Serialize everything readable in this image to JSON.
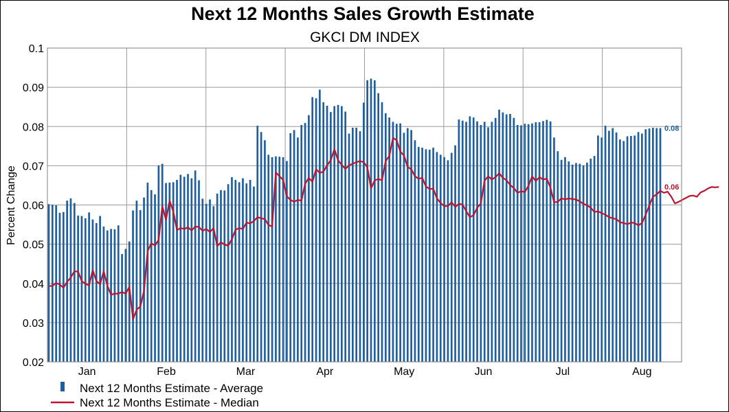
{
  "chart_data": {
    "type": "bar",
    "title": "Next 12 Months Sales Growth Estimate",
    "subtitle": "GKCI DM INDEX",
    "ylabel": "Percent Change",
    "xlabel": "",
    "ylim": [
      0.02,
      0.1
    ],
    "yticks": [
      "0.02",
      "0.03",
      "0.04",
      "0.05",
      "0.06",
      "0.07",
      "0.08",
      "0.09",
      "0.1"
    ],
    "months": [
      "Jan",
      "Feb",
      "Mar",
      "Apr",
      "May",
      "Jun",
      "Jul",
      "Aug"
    ],
    "grid": true,
    "legend_position": "bottom-left",
    "colors": {
      "average": "#1f5f9e",
      "median": "#c0122c",
      "grid": "#999999"
    },
    "series": [
      {
        "name": "Next 12 Months Estimate - Average",
        "type": "bar",
        "end_label": "0.08",
        "values": [
          0.0602,
          0.0601,
          0.0599,
          0.058,
          0.0582,
          0.0611,
          0.0617,
          0.0605,
          0.0573,
          0.0572,
          0.0566,
          0.0581,
          0.0563,
          0.0554,
          0.0572,
          0.0545,
          0.0535,
          0.0539,
          0.0538,
          0.0548,
          0.0475,
          0.0488,
          0.0507,
          0.0586,
          0.0611,
          0.0587,
          0.0619,
          0.0657,
          0.0638,
          0.0627,
          0.0701,
          0.0705,
          0.0656,
          0.0657,
          0.0658,
          0.0664,
          0.0677,
          0.0672,
          0.0679,
          0.0668,
          0.0688,
          0.0663,
          0.0616,
          0.0603,
          0.0614,
          0.0597,
          0.0629,
          0.0638,
          0.0637,
          0.0653,
          0.0671,
          0.0664,
          0.0658,
          0.0668,
          0.0655,
          0.0664,
          0.0647,
          0.0802,
          0.0786,
          0.0765,
          0.0728,
          0.0722,
          0.0724,
          0.0723,
          0.0722,
          0.0712,
          0.0783,
          0.0791,
          0.0772,
          0.0804,
          0.0809,
          0.0829,
          0.0875,
          0.0872,
          0.0894,
          0.0862,
          0.0853,
          0.0837,
          0.0852,
          0.0855,
          0.0852,
          0.0838,
          0.0782,
          0.0797,
          0.0797,
          0.0788,
          0.0861,
          0.0918,
          0.0922,
          0.0918,
          0.0885,
          0.0862,
          0.0834,
          0.0823,
          0.0812,
          0.0807,
          0.0808,
          0.0784,
          0.0796,
          0.0791,
          0.0765,
          0.0748,
          0.0746,
          0.0742,
          0.0741,
          0.0746,
          0.0735,
          0.0728,
          0.0722,
          0.0714,
          0.0733,
          0.0752,
          0.0818,
          0.0815,
          0.0812,
          0.0826,
          0.0823,
          0.0813,
          0.0804,
          0.0812,
          0.0798,
          0.0812,
          0.0822,
          0.0843,
          0.0836,
          0.0831,
          0.0832,
          0.0822,
          0.0804,
          0.0803,
          0.0807,
          0.0806,
          0.0808,
          0.0811,
          0.0811,
          0.0814,
          0.0817,
          0.0813,
          0.0772,
          0.0737,
          0.0715,
          0.0722,
          0.0711,
          0.0703,
          0.0707,
          0.0705,
          0.0701,
          0.0708,
          0.0718,
          0.0725,
          0.0777,
          0.0772,
          0.0802,
          0.0789,
          0.0796,
          0.0785,
          0.0767,
          0.0763,
          0.0775,
          0.0776,
          0.0777,
          0.0786,
          0.0782,
          0.0793,
          0.0795,
          0.0797,
          0.0796,
          0.0796
        ]
      },
      {
        "name": "Next 12 Months Estimate - Median",
        "type": "line",
        "end_label": "0.06",
        "values": [
          0.0393,
          0.0394,
          0.0401,
          0.0397,
          0.0389,
          0.0404,
          0.0415,
          0.0431,
          0.043,
          0.0406,
          0.0399,
          0.0395,
          0.0434,
          0.0406,
          0.0398,
          0.0431,
          0.0394,
          0.0371,
          0.0374,
          0.0374,
          0.0378,
          0.0374,
          0.0391,
          0.0309,
          0.0333,
          0.0341,
          0.0381,
          0.0483,
          0.0502,
          0.0497,
          0.0511,
          0.0597,
          0.0562,
          0.0611,
          0.0583,
          0.0536,
          0.0541,
          0.0539,
          0.0543,
          0.0535,
          0.0545,
          0.0544,
          0.0534,
          0.0539,
          0.0531,
          0.0541,
          0.0495,
          0.0505,
          0.0499,
          0.0496,
          0.0513,
          0.0537,
          0.0541,
          0.0539,
          0.0555,
          0.0553,
          0.0559,
          0.0569,
          0.0566,
          0.0564,
          0.0549,
          0.0545,
          0.0683,
          0.0673,
          0.0664,
          0.0622,
          0.0613,
          0.0608,
          0.0613,
          0.0611,
          0.0654,
          0.0669,
          0.0659,
          0.0691,
          0.0682,
          0.0685,
          0.0701,
          0.0714,
          0.0742,
          0.0714,
          0.0702,
          0.0692,
          0.0701,
          0.0705,
          0.0709,
          0.0712,
          0.0709,
          0.0696,
          0.0642,
          0.0663,
          0.0666,
          0.0663,
          0.0712,
          0.0725,
          0.0771,
          0.0765,
          0.0736,
          0.0726,
          0.0697,
          0.0691,
          0.0673,
          0.0667,
          0.0669,
          0.0647,
          0.0641,
          0.0641,
          0.0617,
          0.0605,
          0.0597,
          0.0597,
          0.0607,
          0.0595,
          0.0603,
          0.0601,
          0.0584,
          0.0569,
          0.0574,
          0.0593,
          0.0604,
          0.0662,
          0.0673,
          0.0665,
          0.0671,
          0.0681,
          0.0669,
          0.0663,
          0.0651,
          0.0643,
          0.0631,
          0.0635,
          0.0633,
          0.0649,
          0.0673,
          0.0661,
          0.0671,
          0.0665,
          0.0667,
          0.0644,
          0.0607,
          0.0608,
          0.0617,
          0.0614,
          0.0617,
          0.0615,
          0.0614,
          0.0609,
          0.0603,
          0.0599,
          0.0593,
          0.0582,
          0.0584,
          0.0579,
          0.0575,
          0.0569,
          0.0566,
          0.0564,
          0.0556,
          0.0554,
          0.0551,
          0.0555,
          0.0554,
          0.0548,
          0.0554,
          0.0575,
          0.0599,
          0.0621,
          0.0627,
          0.0636,
          0.0631,
          0.0634,
          0.0621,
          0.0604,
          0.0608,
          0.0613,
          0.0618,
          0.0623,
          0.0624,
          0.0621,
          0.0632,
          0.0636,
          0.0642,
          0.0646,
          0.0645,
          0.0646
        ]
      }
    ]
  }
}
